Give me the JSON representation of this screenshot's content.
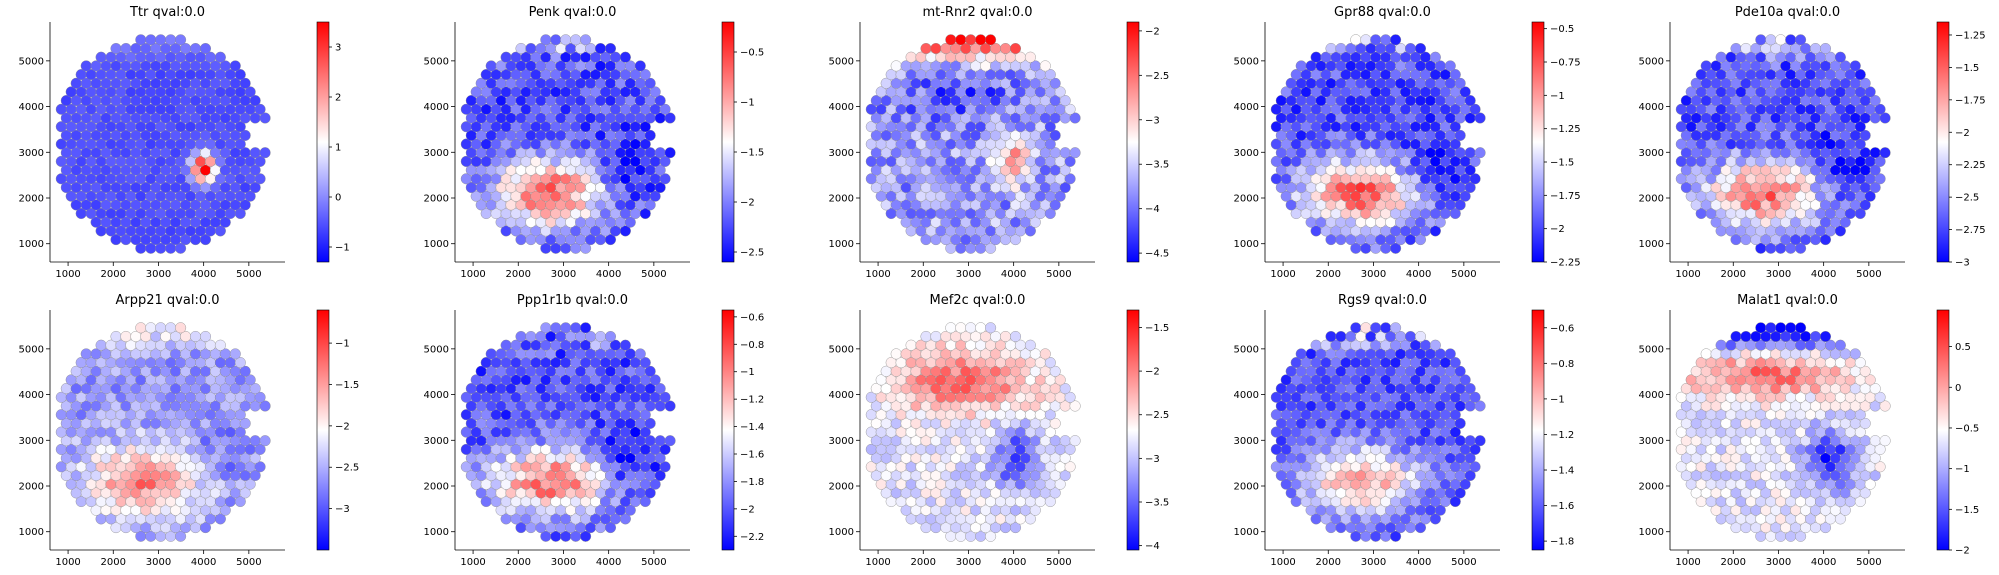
{
  "chart_data": [
    {
      "type": "scatter",
      "title": "Ttr qval:0.0",
      "gene": "Ttr",
      "pattern": "choroid",
      "xlim": [
        600,
        5800
      ],
      "ylim": [
        600,
        5850
      ],
      "xticks": [
        1000,
        2000,
        3000,
        4000,
        5000
      ],
      "yticks": [
        1000,
        2000,
        3000,
        4000,
        5000
      ],
      "colorbar": {
        "vmin": -1.3,
        "vmax": 3.5,
        "ticks": [
          -1,
          0,
          1,
          2,
          3
        ],
        "cmap": "bwr"
      }
    },
    {
      "type": "scatter",
      "title": "Penk qval:0.0",
      "gene": "Penk",
      "pattern": "striatum",
      "xlim": [
        600,
        5800
      ],
      "ylim": [
        600,
        5850
      ],
      "xticks": [
        1000,
        2000,
        3000,
        4000,
        5000
      ],
      "yticks": [
        1000,
        2000,
        3000,
        4000,
        5000
      ],
      "colorbar": {
        "vmin": -2.6,
        "vmax": -0.2,
        "ticks": [
          -2.5,
          -2.0,
          -1.5,
          -1.0,
          -0.5
        ],
        "cmap": "bwr"
      }
    },
    {
      "type": "scatter",
      "title": "mt-Rnr2 qval:0.0",
      "gene": "mt-Rnr2",
      "pattern": "top_and_choroid",
      "xlim": [
        600,
        5800
      ],
      "ylim": [
        600,
        5850
      ],
      "xticks": [
        1000,
        2000,
        3000,
        4000,
        5000
      ],
      "yticks": [
        1000,
        2000,
        3000,
        4000,
        5000
      ],
      "colorbar": {
        "vmin": -4.6,
        "vmax": -1.9,
        "ticks": [
          -4.5,
          -4.0,
          -3.5,
          -3.0,
          -2.5,
          -2.0
        ],
        "cmap": "bwr"
      }
    },
    {
      "type": "scatter",
      "title": "Gpr88 qval:0.0",
      "gene": "Gpr88",
      "pattern": "striatum",
      "xlim": [
        600,
        5800
      ],
      "ylim": [
        600,
        5850
      ],
      "xticks": [
        1000,
        2000,
        3000,
        4000,
        5000
      ],
      "yticks": [
        1000,
        2000,
        3000,
        4000,
        5000
      ],
      "colorbar": {
        "vmin": -2.25,
        "vmax": -0.45,
        "ticks": [
          -2.25,
          -2.0,
          -1.75,
          -1.5,
          -1.25,
          -1.0,
          -0.75,
          -0.5
        ],
        "cmap": "bwr"
      }
    },
    {
      "type": "scatter",
      "title": "Pde10a qval:0.0",
      "gene": "Pde10a",
      "pattern": "striatum",
      "xlim": [
        600,
        5800
      ],
      "ylim": [
        600,
        5850
      ],
      "xticks": [
        1000,
        2000,
        3000,
        4000,
        5000
      ],
      "yticks": [
        1000,
        2000,
        3000,
        4000,
        5000
      ],
      "colorbar": {
        "vmin": -3.0,
        "vmax": -1.15,
        "ticks": [
          -3.0,
          -2.75,
          -2.5,
          -2.25,
          -2.0,
          -1.75,
          -1.5,
          -1.25
        ],
        "cmap": "bwr"
      }
    },
    {
      "type": "scatter",
      "title": "Arpp21 qval:0.0",
      "gene": "Arpp21",
      "pattern": "striatum_soft",
      "xlim": [
        600,
        5800
      ],
      "ylim": [
        600,
        5850
      ],
      "xticks": [
        1000,
        2000,
        3000,
        4000,
        5000
      ],
      "yticks": [
        1000,
        2000,
        3000,
        4000,
        5000
      ],
      "colorbar": {
        "vmin": -3.5,
        "vmax": -0.6,
        "ticks": [
          -3.0,
          -2.5,
          -2.0,
          -1.5,
          -1.0
        ],
        "cmap": "bwr"
      }
    },
    {
      "type": "scatter",
      "title": "Ppp1r1b qval:0.0",
      "gene": "Ppp1r1b",
      "pattern": "striatum",
      "xlim": [
        600,
        5800
      ],
      "ylim": [
        600,
        5850
      ],
      "xticks": [
        1000,
        2000,
        3000,
        4000,
        5000
      ],
      "yticks": [
        1000,
        2000,
        3000,
        4000,
        5000
      ],
      "colorbar": {
        "vmin": -2.3,
        "vmax": -0.55,
        "ticks": [
          -2.2,
          -2.0,
          -1.8,
          -1.6,
          -1.4,
          -1.2,
          -1.0,
          -0.8,
          -0.6
        ],
        "cmap": "bwr"
      }
    },
    {
      "type": "scatter",
      "title": "Mef2c qval:0.0",
      "gene": "Mef2c",
      "pattern": "cortex",
      "xlim": [
        600,
        5800
      ],
      "ylim": [
        600,
        5850
      ],
      "xticks": [
        1000,
        2000,
        3000,
        4000,
        5000
      ],
      "yticks": [
        1000,
        2000,
        3000,
        4000,
        5000
      ],
      "colorbar": {
        "vmin": -4.05,
        "vmax": -1.3,
        "ticks": [
          -4.0,
          -3.5,
          -3.0,
          -2.5,
          -2.0,
          -1.5
        ],
        "cmap": "bwr"
      }
    },
    {
      "type": "scatter",
      "title": "Rgs9 qval:0.0",
      "gene": "Rgs9",
      "pattern": "striatum_top",
      "xlim": [
        600,
        5800
      ],
      "ylim": [
        600,
        5850
      ],
      "xticks": [
        1000,
        2000,
        3000,
        4000,
        5000
      ],
      "yticks": [
        1000,
        2000,
        3000,
        4000,
        5000
      ],
      "colorbar": {
        "vmin": -1.85,
        "vmax": -0.5,
        "ticks": [
          -1.8,
          -1.6,
          -1.4,
          -1.2,
          -1.0,
          -0.8,
          -0.6
        ],
        "cmap": "bwr"
      }
    },
    {
      "type": "scatter",
      "title": "Malat1 qval:0.0",
      "gene": "Malat1",
      "pattern": "band",
      "xlim": [
        600,
        5800
      ],
      "ylim": [
        600,
        5850
      ],
      "xticks": [
        1000,
        2000,
        3000,
        4000,
        5000
      ],
      "yticks": [
        1000,
        2000,
        3000,
        4000,
        5000
      ],
      "colorbar": {
        "vmin": -2.0,
        "vmax": 0.95,
        "ticks": [
          -2.0,
          -1.5,
          -1.0,
          -0.5,
          0.0,
          0.5
        ],
        "cmap": "bwr"
      }
    }
  ]
}
